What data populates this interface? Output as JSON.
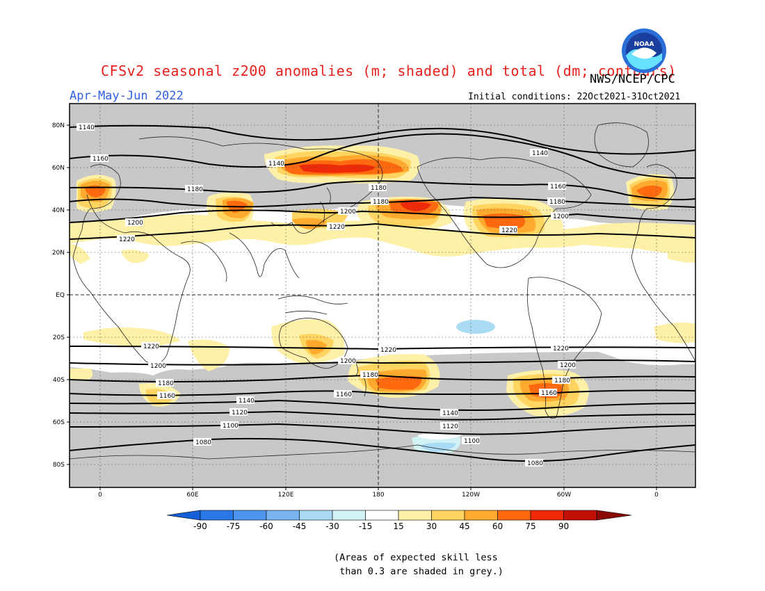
{
  "header": {
    "title": "CFSv2 seasonal z200 anomalies (m; shaded) and total (dm; contours)",
    "credit": "NWS/NCEP/CPC",
    "season": "Apr-May-Jun 2022",
    "initial_conditions": "Initial conditions: 22Oct2021-31Oct2021",
    "logo_text": "NOAA"
  },
  "map": {
    "lat_labels": [
      "80N",
      "60N",
      "40N",
      "20N",
      "EQ",
      "20S",
      "40S",
      "60S",
      "80S"
    ],
    "lon_labels": [
      "0",
      "60E",
      "120E",
      "180",
      "120W",
      "60W",
      "0"
    ],
    "contour_labels": [
      "1220",
      "1200",
      "1180",
      "1160",
      "1140",
      "1120",
      "1100",
      "1080"
    ]
  },
  "colorbar": {
    "ticks": [
      "-90",
      "-75",
      "-60",
      "-45",
      "-30",
      "-15",
      "15",
      "30",
      "45",
      "60",
      "75",
      "90"
    ],
    "colors": [
      "#1560d8",
      "#2a78e8",
      "#4d94ee",
      "#7ab4f0",
      "#a9dcf4",
      "#d2f2f6",
      "#ffffff",
      "#fff0a8",
      "#ffd460",
      "#ffaa2e",
      "#ff6a10",
      "#ee2a08",
      "#c40f06",
      "#8c0a05"
    ]
  },
  "note": "(Areas of expected skill less\n than 0.3 are shaded in grey.)",
  "legend_colors": {
    "grey_low_skill": "#c8c8c8"
  }
}
